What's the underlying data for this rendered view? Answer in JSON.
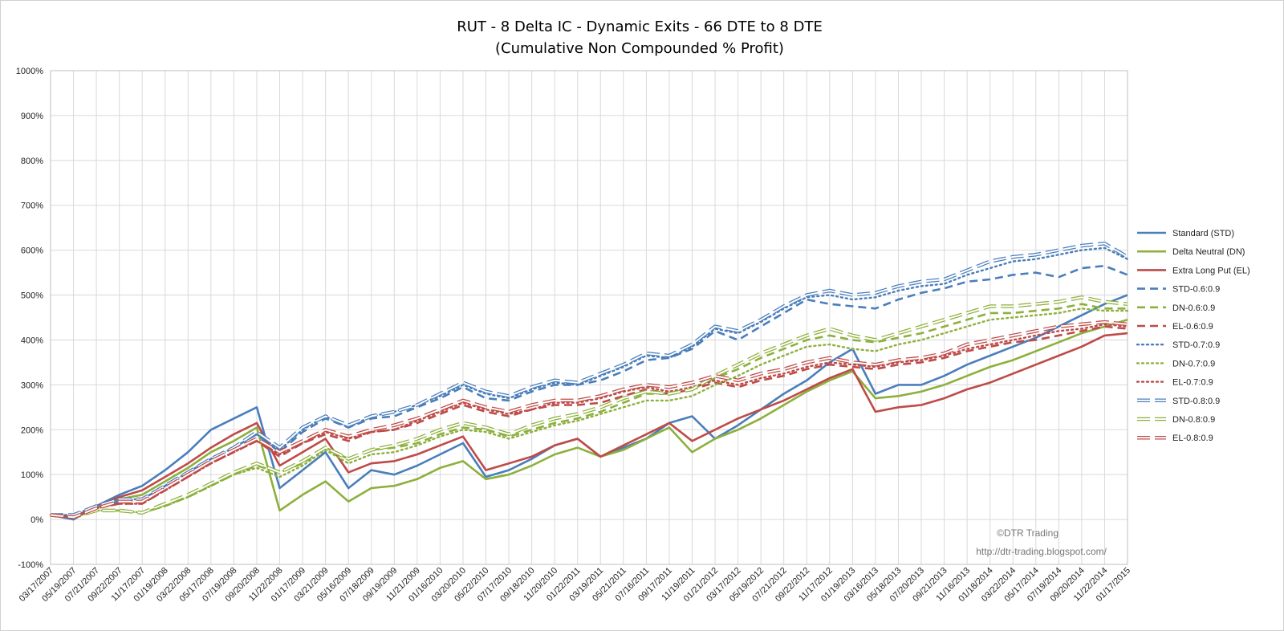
{
  "chart_data": {
    "type": "line",
    "title": "RUT - 8 Delta IC - Dynamic Exits - 66 DTE to 8 DTE",
    "subtitle": "(Cumulative Non Compounded % Profit)",
    "ylim": [
      -100,
      1000
    ],
    "ytick_step": 100,
    "y_tick_labels": [
      "-100%",
      "0%",
      "100%",
      "200%",
      "300%",
      "400%",
      "500%",
      "600%",
      "700%",
      "800%",
      "900%",
      "1000%"
    ],
    "x_tick_labels": [
      "03/17/2007",
      "05/19/2007",
      "07/21/2007",
      "09/22/2007",
      "11/17/2007",
      "01/19/2008",
      "03/22/2008",
      "05/17/2008",
      "07/19/2008",
      "09/20/2008",
      "11/22/2008",
      "01/17/2009",
      "03/21/2009",
      "05/16/2009",
      "07/18/2009",
      "09/19/2009",
      "11/21/2009",
      "01/16/2010",
      "03/20/2010",
      "05/22/2010",
      "07/17/2010",
      "09/18/2010",
      "11/20/2010",
      "01/22/2011",
      "03/19/2011",
      "05/21/2011",
      "07/16/2011",
      "09/17/2011",
      "11/19/2011",
      "01/21/2012",
      "03/17/2012",
      "05/19/2012",
      "07/21/2012",
      "09/22/2012",
      "11/17/2012",
      "01/19/2013",
      "03/16/2013",
      "05/18/2013",
      "07/20/2013",
      "09/21/2013",
      "11/16/2013",
      "01/18/2014",
      "03/22/2014",
      "05/17/2014",
      "07/19/2014",
      "09/20/2014",
      "11/22/2014",
      "01/17/2015"
    ],
    "grid": "vertical and horizontal",
    "legend_position": "right",
    "series": [
      {
        "name": "Standard (STD)",
        "color": "#4a7ebb",
        "style": "solid",
        "values": [
          10,
          0,
          30,
          55,
          75,
          110,
          150,
          200,
          225,
          250,
          70,
          110,
          150,
          70,
          110,
          100,
          120,
          145,
          170,
          95,
          110,
          135,
          165,
          180,
          140,
          160,
          180,
          215,
          230,
          180,
          210,
          245,
          280,
          310,
          350,
          380,
          280,
          300,
          300,
          320,
          345,
          365,
          385,
          405,
          430,
          455,
          480,
          500
        ]
      },
      {
        "name": "Delta Neutral (DN)",
        "color": "#8db03c",
        "style": "solid",
        "values": [
          10,
          5,
          25,
          45,
          55,
          85,
          115,
          150,
          175,
          205,
          20,
          55,
          85,
          40,
          70,
          75,
          90,
          115,
          130,
          90,
          100,
          120,
          145,
          160,
          140,
          155,
          180,
          205,
          150,
          180,
          200,
          225,
          255,
          285,
          310,
          330,
          270,
          275,
          285,
          300,
          320,
          340,
          355,
          375,
          395,
          415,
          430,
          445
        ]
      },
      {
        "name": "Extra Long Put (EL)",
        "color": "#be4b48",
        "style": "solid",
        "values": [
          10,
          5,
          30,
          50,
          65,
          95,
          125,
          160,
          190,
          215,
          120,
          150,
          180,
          105,
          125,
          130,
          145,
          165,
          185,
          110,
          125,
          140,
          165,
          180,
          140,
          165,
          190,
          215,
          175,
          200,
          225,
          245,
          265,
          290,
          315,
          335,
          240,
          250,
          255,
          270,
          290,
          305,
          325,
          345,
          365,
          385,
          410,
          415
        ]
      },
      {
        "name": "STD-0.6:0.9",
        "color": "#4a7ebb",
        "style": "dash",
        "values": [
          10,
          5,
          25,
          40,
          45,
          75,
          105,
          135,
          160,
          190,
          150,
          195,
          225,
          205,
          225,
          230,
          250,
          270,
          295,
          270,
          265,
          285,
          300,
          300,
          310,
          330,
          355,
          360,
          380,
          420,
          400,
          430,
          460,
          490,
          480,
          475,
          470,
          490,
          505,
          515,
          530,
          535,
          545,
          550,
          540,
          560,
          565,
          545
        ]
      },
      {
        "name": "DN-0.6:0.9",
        "color": "#8db03c",
        "style": "dash",
        "values": [
          10,
          5,
          20,
          20,
          15,
          30,
          50,
          75,
          100,
          120,
          105,
          125,
          160,
          135,
          155,
          160,
          170,
          190,
          205,
          200,
          185,
          200,
          215,
          225,
          240,
          260,
          280,
          280,
          290,
          315,
          335,
          360,
          380,
          400,
          410,
          400,
          395,
          405,
          415,
          430,
          445,
          460,
          460,
          465,
          470,
          480,
          470,
          470
        ]
      },
      {
        "name": "EL-0.6:0.9",
        "color": "#be4b48",
        "style": "dash",
        "values": [
          10,
          5,
          25,
          35,
          35,
          65,
          95,
          125,
          150,
          175,
          140,
          170,
          190,
          175,
          195,
          200,
          215,
          235,
          255,
          240,
          230,
          245,
          255,
          255,
          260,
          275,
          290,
          280,
          290,
          305,
          295,
          310,
          320,
          335,
          345,
          340,
          335,
          345,
          350,
          360,
          375,
          385,
          395,
          400,
          410,
          420,
          430,
          425
        ]
      },
      {
        "name": "STD-0.7:0.9",
        "color": "#4a7ebb",
        "style": "dot",
        "values": [
          10,
          10,
          30,
          45,
          45,
          75,
          105,
          135,
          160,
          190,
          155,
          200,
          230,
          205,
          230,
          240,
          255,
          275,
          300,
          280,
          270,
          290,
          305,
          300,
          320,
          340,
          365,
          360,
          385,
          425,
          415,
          440,
          470,
          495,
          500,
          490,
          495,
          510,
          520,
          525,
          545,
          560,
          575,
          580,
          590,
          600,
          605,
          580
        ]
      },
      {
        "name": "DN-0.7:0.9",
        "color": "#8db03c",
        "style": "dot",
        "values": [
          10,
          5,
          20,
          20,
          15,
          30,
          50,
          75,
          100,
          115,
          95,
          120,
          155,
          125,
          145,
          150,
          165,
          185,
          200,
          195,
          180,
          195,
          210,
          220,
          235,
          250,
          265,
          265,
          275,
          300,
          320,
          345,
          365,
          385,
          390,
          380,
          375,
          390,
          400,
          415,
          430,
          445,
          450,
          455,
          460,
          470,
          465,
          465
        ]
      },
      {
        "name": "EL-0.7:0.9",
        "color": "#be4b48",
        "style": "dot",
        "values": [
          10,
          5,
          25,
          35,
          35,
          65,
          95,
          125,
          150,
          175,
          145,
          170,
          195,
          180,
          195,
          200,
          220,
          240,
          260,
          245,
          235,
          245,
          260,
          260,
          270,
          285,
          295,
          285,
          295,
          310,
          300,
          315,
          325,
          340,
          350,
          345,
          340,
          350,
          355,
          365,
          380,
          390,
          400,
          410,
          420,
          425,
          435,
          430
        ]
      },
      {
        "name": "STD-0.8:0.9",
        "color": "#4a7ebb",
        "style": "double",
        "values": [
          10,
          10,
          30,
          45,
          45,
          75,
          105,
          135,
          160,
          195,
          160,
          205,
          230,
          210,
          230,
          240,
          255,
          280,
          305,
          285,
          275,
          295,
          310,
          305,
          325,
          345,
          370,
          365,
          390,
          430,
          420,
          445,
          475,
          500,
          510,
          500,
          505,
          520,
          530,
          535,
          555,
          575,
          585,
          590,
          600,
          610,
          615,
          585
        ]
      },
      {
        "name": "DN-0.8:0.9",
        "color": "#8db03c",
        "style": "double",
        "values": [
          10,
          5,
          20,
          20,
          15,
          35,
          55,
          80,
          105,
          125,
          105,
          130,
          160,
          135,
          155,
          165,
          180,
          200,
          215,
          205,
          190,
          210,
          225,
          235,
          250,
          270,
          285,
          280,
          290,
          320,
          345,
          370,
          390,
          410,
          425,
          410,
          400,
          415,
          430,
          445,
          460,
          475,
          475,
          480,
          485,
          495,
          485,
          480
        ]
      },
      {
        "name": "EL-0.8:0.9",
        "color": "#be4b48",
        "style": "double",
        "values": [
          10,
          5,
          25,
          40,
          40,
          70,
          100,
          130,
          155,
          180,
          150,
          175,
          200,
          185,
          200,
          210,
          225,
          245,
          265,
          250,
          240,
          255,
          265,
          265,
          275,
          290,
          300,
          295,
          305,
          320,
          310,
          325,
          335,
          350,
          360,
          350,
          345,
          355,
          360,
          370,
          390,
          400,
          410,
          420,
          430,
          435,
          440,
          435
        ]
      }
    ]
  },
  "watermark": {
    "copyright": "©DTR Trading",
    "url": "http://dtr-trading.blogspot.com/"
  }
}
